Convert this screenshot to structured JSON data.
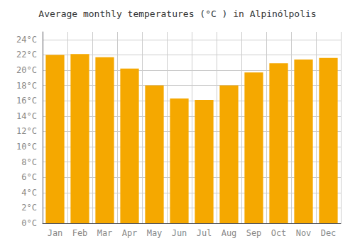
{
  "chart_data": {
    "type": "bar",
    "title": "Average monthly temperatures (°C ) in Alpinólpolis",
    "categories": [
      "Jan",
      "Feb",
      "Mar",
      "Apr",
      "May",
      "Jun",
      "Jul",
      "Aug",
      "Sep",
      "Oct",
      "Nov",
      "Dec"
    ],
    "values": [
      22.0,
      22.1,
      21.7,
      20.2,
      18.0,
      16.3,
      16.1,
      18.0,
      19.7,
      20.9,
      21.4,
      21.6
    ],
    "color": "#F5A800",
    "ylim": [
      0,
      25
    ],
    "yticks": [
      {
        "value": 0,
        "label": "0°C"
      },
      {
        "value": 2,
        "label": "2°C"
      },
      {
        "value": 4,
        "label": "4°C"
      },
      {
        "value": 6,
        "label": "6°C"
      },
      {
        "value": 8,
        "label": "8°C"
      },
      {
        "value": 10,
        "label": "10°C"
      },
      {
        "value": 12,
        "label": "12°C"
      },
      {
        "value": 14,
        "label": "14°C"
      },
      {
        "value": 16,
        "label": "16°C"
      },
      {
        "value": 18,
        "label": "18°C"
      },
      {
        "value": 20,
        "label": "20°C"
      },
      {
        "value": 22,
        "label": "22°C"
      },
      {
        "value": 24,
        "label": "24°C"
      }
    ],
    "grid": true
  }
}
